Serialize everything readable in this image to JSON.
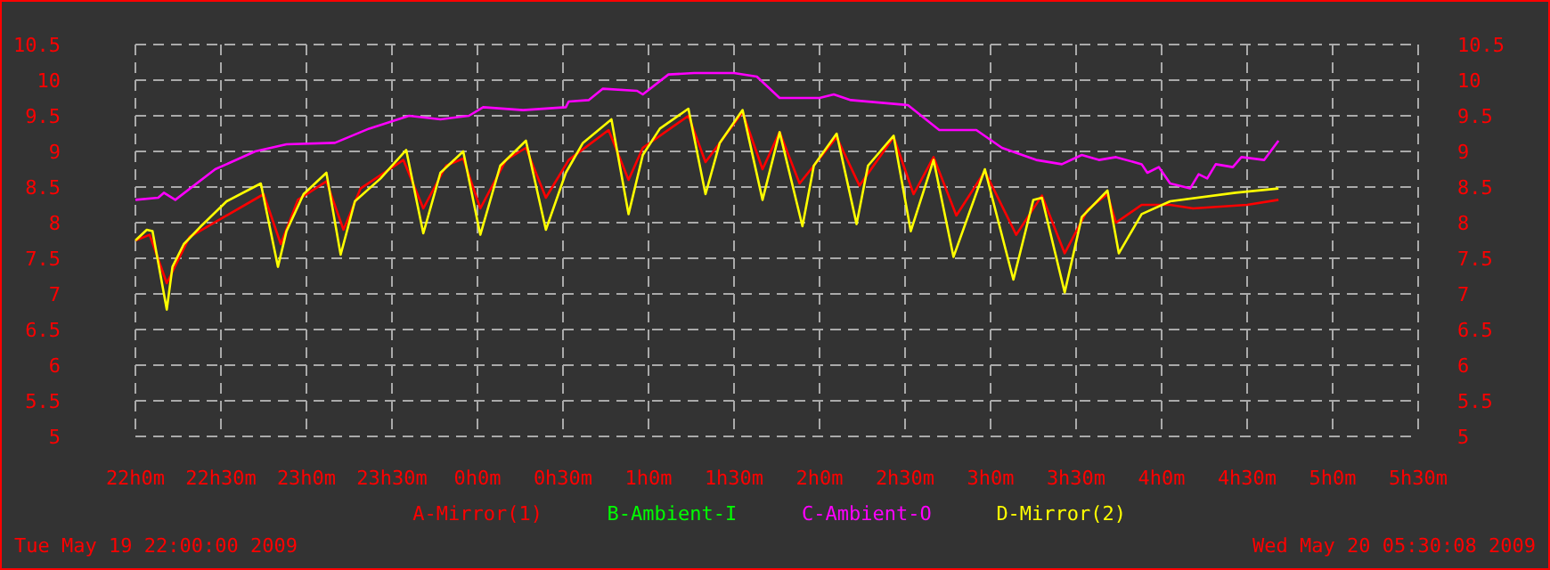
{
  "chart_data": {
    "type": "line",
    "xlim": [
      "2009-05-19T22:00",
      "2009-05-20T05:30"
    ],
    "xticks": [
      {
        "value": "2009-05-19T22:00",
        "label": "22h0m"
      },
      {
        "value": "2009-05-19T22:30",
        "label": "22h30m"
      },
      {
        "value": "2009-05-19T23:00",
        "label": "23h0m"
      },
      {
        "value": "2009-05-19T23:30",
        "label": "23h30m"
      },
      {
        "value": "2009-05-20T00:00",
        "label": "0h0m"
      },
      {
        "value": "2009-05-20T00:30",
        "label": "0h30m"
      },
      {
        "value": "2009-05-20T01:00",
        "label": "1h0m"
      },
      {
        "value": "2009-05-20T01:30",
        "label": "1h30m"
      },
      {
        "value": "2009-05-20T02:00",
        "label": "2h0m"
      },
      {
        "value": "2009-05-20T02:30",
        "label": "2h30m"
      },
      {
        "value": "2009-05-20T03:00",
        "label": "3h0m"
      },
      {
        "value": "2009-05-20T03:30",
        "label": "3h30m"
      },
      {
        "value": "2009-05-20T04:00",
        "label": "4h0m"
      },
      {
        "value": "2009-05-20T04:30",
        "label": "4h30m"
      },
      {
        "value": "2009-05-20T05:00",
        "label": "5h0m"
      },
      {
        "value": "2009-05-20T05:30",
        "label": "5h30m"
      }
    ],
    "ylim": [
      5,
      10.5
    ],
    "yticks": [
      5,
      5.5,
      6,
      6.5,
      7,
      7.5,
      8,
      8.5,
      9,
      9.5,
      10,
      10.5
    ],
    "y2lim": [
      5,
      10.5
    ],
    "y2ticks": [
      5,
      5.5,
      6,
      6.5,
      7,
      7.5,
      8,
      8.5,
      9,
      9.5,
      10,
      10.5
    ],
    "grid": true,
    "legend": "bottom",
    "line_style": "solid",
    "annotations": [
      "Tue May 19 22:00:00 2009",
      "Wed May 20 05:30:08 2009"
    ],
    "series": [
      {
        "name": "A-Mirror(1)",
        "color": "#ff0000",
        "x": [
          "2009-05-19T22:00",
          "2009-05-19T22:05",
          "2009-05-19T22:11",
          "2009-05-19T22:19",
          "2009-05-19T22:45",
          "2009-05-19T22:51",
          "2009-05-19T22:57",
          "2009-05-19T23:07",
          "2009-05-19T23:13",
          "2009-05-19T23:19",
          "2009-05-19T23:34",
          "2009-05-19T23:41",
          "2009-05-19T23:49",
          "2009-05-19T23:55",
          "2009-05-20T00:01",
          "2009-05-20T00:10",
          "2009-05-20T00:17",
          "2009-05-20T00:24",
          "2009-05-20T00:32",
          "2009-05-20T00:46",
          "2009-05-20T00:53",
          "2009-05-20T00:58",
          "2009-05-20T01:14",
          "2009-05-20T01:20",
          "2009-05-20T01:33",
          "2009-05-20T01:40",
          "2009-05-20T01:46",
          "2009-05-20T01:53",
          "2009-05-20T02:06",
          "2009-05-20T02:14",
          "2009-05-20T02:26",
          "2009-05-20T02:33",
          "2009-05-20T02:40",
          "2009-05-20T02:48",
          "2009-05-20T02:58",
          "2009-05-20T03:09",
          "2009-05-20T03:18",
          "2009-05-20T03:26",
          "2009-05-20T03:34",
          "2009-05-20T03:41",
          "2009-05-20T03:44",
          "2009-05-20T03:53",
          "2009-05-20T04:03",
          "2009-05-20T04:11",
          "2009-05-20T04:30",
          "2009-05-20T04:41"
        ],
        "values": [
          7.75,
          7.83,
          7.15,
          7.8,
          8.4,
          7.7,
          8.32,
          8.58,
          7.9,
          8.48,
          8.88,
          8.2,
          8.8,
          8.9,
          8.2,
          8.88,
          9.05,
          8.35,
          8.88,
          9.3,
          8.6,
          9.05,
          9.5,
          8.85,
          9.55,
          8.75,
          9.27,
          8.55,
          9.2,
          8.52,
          9.2,
          8.4,
          8.92,
          8.1,
          8.72,
          7.83,
          8.38,
          7.57,
          8.18,
          8.4,
          8.0,
          8.25,
          8.25,
          8.2,
          8.25,
          8.32
        ]
      },
      {
        "name": "B-Ambient-I",
        "color": "#00ff00"
      },
      {
        "name": "C-Ambient-O",
        "color": "#ff00ff",
        "x": [
          "2009-05-19T22:00",
          "2009-05-19T22:08",
          "2009-05-19T22:10",
          "2009-05-19T22:14",
          "2009-05-19T22:28",
          "2009-05-19T22:42",
          "2009-05-19T22:53",
          "2009-05-19T23:10",
          "2009-05-19T23:22",
          "2009-05-19T23:36",
          "2009-05-19T23:47",
          "2009-05-19T23:57",
          "2009-05-20T00:02",
          "2009-05-20T00:16",
          "2009-05-20T00:31",
          "2009-05-20T00:32",
          "2009-05-20T00:39",
          "2009-05-20T00:44",
          "2009-05-20T00:56",
          "2009-05-20T00:58",
          "2009-05-20T01:07",
          "2009-05-20T01:16",
          "2009-05-20T01:30",
          "2009-05-20T01:38",
          "2009-05-20T01:46",
          "2009-05-20T02:00",
          "2009-05-20T02:05",
          "2009-05-20T02:11",
          "2009-05-20T02:31",
          "2009-05-20T02:42",
          "2009-05-20T02:55",
          "2009-05-20T03:04",
          "2009-05-20T03:16",
          "2009-05-20T03:25",
          "2009-05-20T03:32",
          "2009-05-20T03:38",
          "2009-05-20T03:44",
          "2009-05-20T03:53",
          "2009-05-20T03:55",
          "2009-05-20T03:59",
          "2009-05-20T04:03",
          "2009-05-20T04:10",
          "2009-05-20T04:13",
          "2009-05-20T04:16",
          "2009-05-20T04:19",
          "2009-05-20T04:25",
          "2009-05-20T04:28",
          "2009-05-20T04:36",
          "2009-05-20T04:41"
        ],
        "values": [
          8.32,
          8.35,
          8.42,
          8.32,
          8.75,
          9.0,
          9.1,
          9.12,
          9.32,
          9.5,
          9.45,
          9.5,
          9.62,
          9.58,
          9.62,
          9.7,
          9.72,
          9.88,
          9.85,
          9.8,
          10.08,
          10.1,
          10.1,
          10.05,
          9.75,
          9.75,
          9.8,
          9.72,
          9.65,
          9.3,
          9.3,
          9.05,
          8.88,
          8.82,
          8.95,
          8.88,
          8.92,
          8.82,
          8.7,
          8.78,
          8.55,
          8.48,
          8.68,
          8.62,
          8.82,
          8.78,
          8.92,
          8.88,
          9.15
        ]
      },
      {
        "name": "D-Mirror(2)",
        "color": "#ffff00",
        "x": [
          "2009-05-19T22:00",
          "2009-05-19T22:04",
          "2009-05-19T22:06",
          "2009-05-19T22:11",
          "2009-05-19T22:13",
          "2009-05-19T22:17",
          "2009-05-19T22:23",
          "2009-05-19T22:32",
          "2009-05-19T22:44",
          "2009-05-19T22:50",
          "2009-05-19T22:53",
          "2009-05-19T22:59",
          "2009-05-19T23:07",
          "2009-05-19T23:12",
          "2009-05-19T23:17",
          "2009-05-19T23:26",
          "2009-05-19T23:35",
          "2009-05-19T23:41",
          "2009-05-19T23:47",
          "2009-05-19T23:55",
          "2009-05-20T00:01",
          "2009-05-20T00:08",
          "2009-05-20T00:17",
          "2009-05-20T00:24",
          "2009-05-20T00:31",
          "2009-05-20T00:37",
          "2009-05-20T00:47",
          "2009-05-20T00:53",
          "2009-05-20T00:58",
          "2009-05-20T01:04",
          "2009-05-20T01:14",
          "2009-05-20T01:20",
          "2009-05-20T01:25",
          "2009-05-20T01:33",
          "2009-05-20T01:40",
          "2009-05-20T01:46",
          "2009-05-20T01:54",
          "2009-05-20T01:58",
          "2009-05-20T02:06",
          "2009-05-20T02:13",
          "2009-05-20T02:17",
          "2009-05-20T02:26",
          "2009-05-20T02:32",
          "2009-05-20T02:40",
          "2009-05-20T02:47",
          "2009-05-20T02:58",
          "2009-05-20T03:08",
          "2009-05-20T03:15",
          "2009-05-20T03:18",
          "2009-05-20T03:26",
          "2009-05-20T03:32",
          "2009-05-20T03:41",
          "2009-05-20T03:45",
          "2009-05-20T03:53",
          "2009-05-20T04:03",
          "2009-05-20T04:26",
          "2009-05-20T04:41"
        ],
        "values": [
          7.75,
          7.9,
          7.88,
          6.78,
          7.38,
          7.7,
          7.95,
          8.3,
          8.55,
          7.38,
          7.88,
          8.4,
          8.7,
          7.55,
          8.3,
          8.62,
          9.02,
          7.85,
          8.7,
          9.0,
          7.83,
          8.8,
          9.15,
          7.9,
          8.7,
          9.12,
          9.45,
          8.12,
          8.95,
          9.32,
          9.6,
          8.4,
          9.12,
          9.58,
          8.32,
          9.27,
          7.95,
          8.8,
          9.25,
          7.98,
          8.8,
          9.22,
          7.88,
          8.88,
          7.52,
          8.75,
          7.2,
          8.32,
          8.35,
          7.02,
          8.08,
          8.45,
          7.57,
          8.12,
          8.3,
          8.42,
          8.48
        ]
      }
    ]
  }
}
